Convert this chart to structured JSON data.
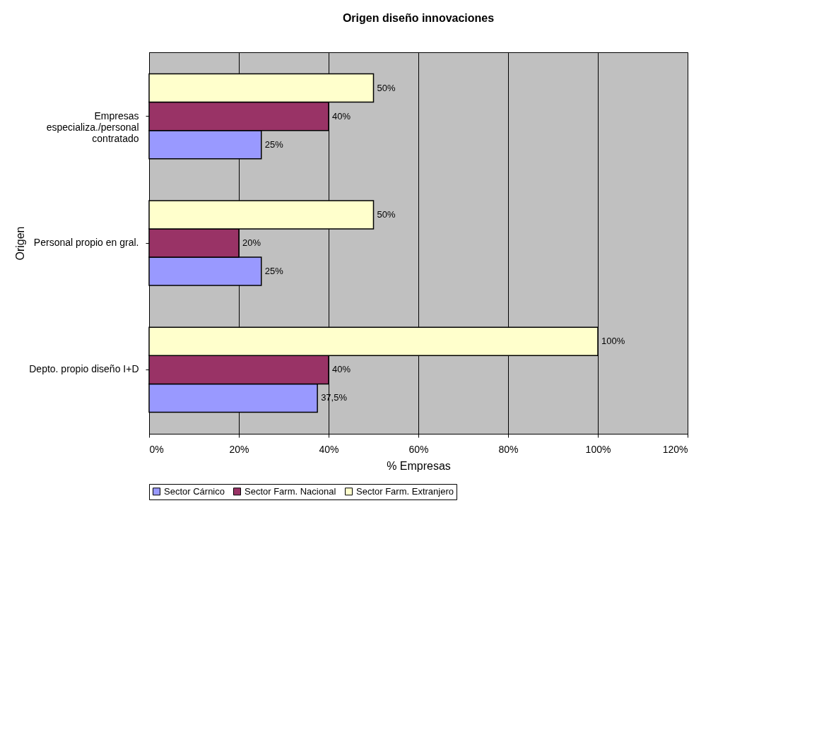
{
  "chart_data": {
    "type": "bar",
    "orientation": "horizontal",
    "title": "Origen diseño innovaciones",
    "xlabel": "% Empresas",
    "ylabel": "Origen",
    "categories": [
      "Empresas\nespecializa./personal\ncontratado",
      "Personal propio en gral.",
      "Depto. propio diseño I+D"
    ],
    "series": [
      {
        "name": "Sector Cárnico",
        "color": "#9999ff",
        "values": [
          25,
          25,
          37.5
        ],
        "value_labels": [
          "25%",
          "25%",
          "37,5%"
        ]
      },
      {
        "name": "Sector Farm. Nacional",
        "color": "#993366",
        "values": [
          40,
          20,
          40
        ],
        "value_labels": [
          "40%",
          "20%",
          "40%"
        ]
      },
      {
        "name": "Sector Farm. Extranjero",
        "color": "#ffffcc",
        "values": [
          50,
          50,
          100
        ],
        "value_labels": [
          "50%",
          "50%",
          "100%"
        ]
      }
    ],
    "xlim": [
      0,
      120
    ],
    "xticks": [
      {
        "value": 0,
        "label": "0%"
      },
      {
        "value": 20,
        "label": "20%"
      },
      {
        "value": 40,
        "label": "40%"
      },
      {
        "value": 60,
        "label": "60%"
      },
      {
        "value": 80,
        "label": "80%"
      },
      {
        "value": 100,
        "label": "100%"
      },
      {
        "value": 120,
        "label": "120%"
      }
    ],
    "grid": "x",
    "legend": "bottom"
  }
}
